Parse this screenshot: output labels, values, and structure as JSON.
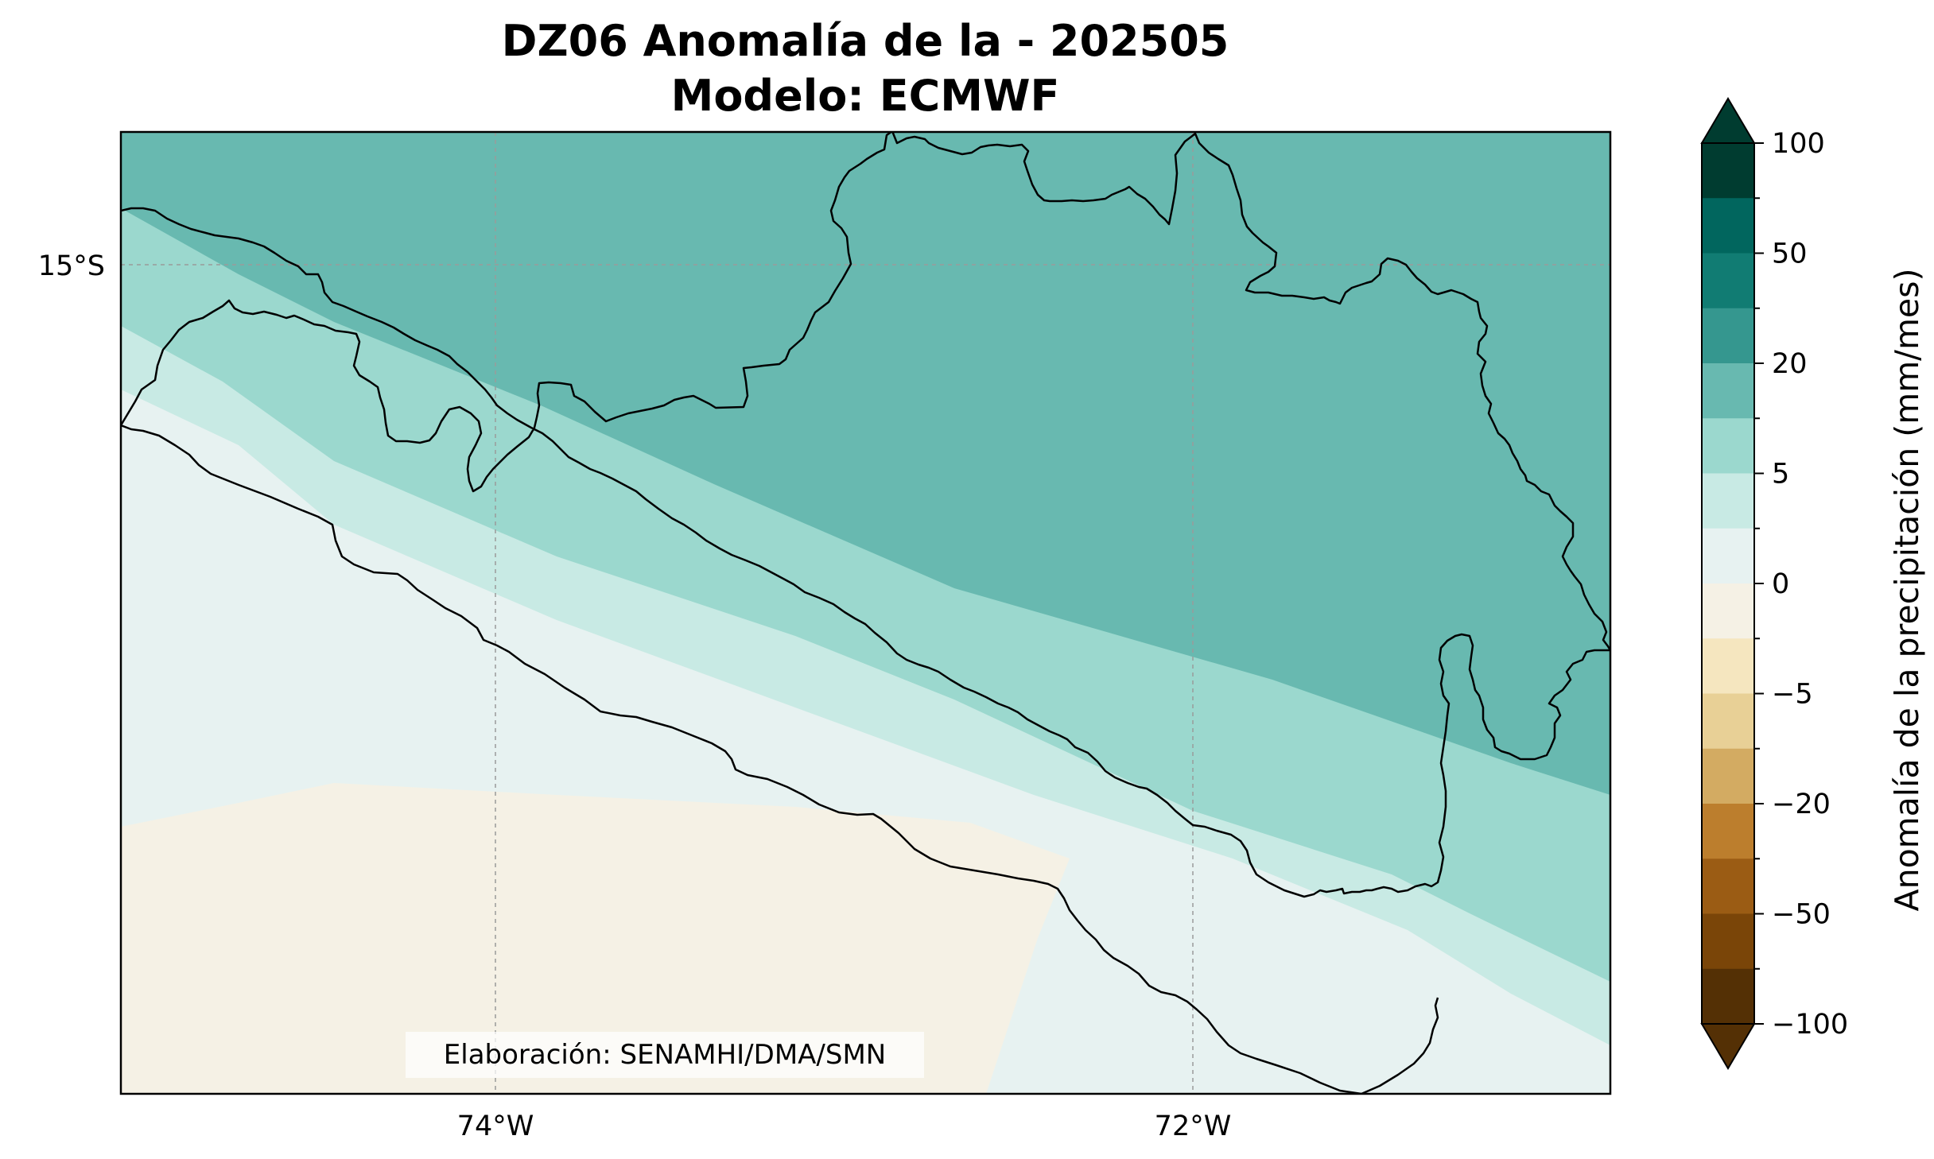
{
  "title": {
    "line1": "DZ06 Anomalía de la - 202505",
    "line2": "Modelo: ECMWF"
  },
  "axes": {
    "lat_tick": "15°S",
    "lon_ticks": [
      "74°W",
      "72°W"
    ]
  },
  "credit": "Elaboración: SENAMHI/DMA/SMN",
  "colorbar": {
    "label": "Anomalía de la precipitación (mm/mes)",
    "tick_labels": [
      "100",
      "50",
      "20",
      "5",
      "0",
      "−5",
      "−20",
      "−50",
      "−100"
    ],
    "colors_top_to_bottom": [
      "#003c30",
      "#01665e",
      "#117c73",
      "#35978f",
      "#68b9b0",
      "#9bd8ce",
      "#c8eae4",
      "#e7f2f1",
      "#f5f1e5",
      "#f5e6bf",
      "#e8d096",
      "#d3ab62",
      "#bc7e2d",
      "#9b5c14",
      "#7a4508",
      "#543005"
    ]
  },
  "map_regions": {
    "anomaly_10_20": "#68b9b0",
    "anomaly_5_10": "#9bd8ce",
    "anomaly_2_5": "#c8eae4",
    "anomaly_0_2": "#e7f2f1",
    "anomaly_neg2_0": "#f5f1e5"
  }
}
